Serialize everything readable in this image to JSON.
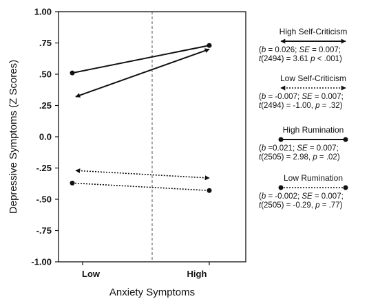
{
  "chart_data": {
    "type": "line",
    "xlabel": "Anxiety Symptoms",
    "ylabel": "Depressive Symptoms (Z Scores)",
    "categories": [
      "Low",
      "High"
    ],
    "ylim": [
      -1.0,
      1.0
    ],
    "y_ticks": [
      "1.00",
      ".75",
      ".50",
      ".25",
      "0.0",
      "-.25",
      "-.50",
      "-.75",
      "-1.00"
    ],
    "y_tick_values": [
      1.0,
      0.75,
      0.5,
      0.25,
      0.0,
      -0.25,
      -0.5,
      -0.75,
      -1.0
    ],
    "series": [
      {
        "name": "High Self-Criticism",
        "values": [
          0.32,
          0.7
        ],
        "style": "solid",
        "marker": "arrow"
      },
      {
        "name": "Low Self-Criticism",
        "values": [
          -0.27,
          -0.33
        ],
        "style": "dotted",
        "marker": "arrow"
      },
      {
        "name": "High Rumination",
        "values": [
          0.51,
          0.73
        ],
        "style": "solid",
        "marker": "dot"
      },
      {
        "name": "Low Rumination",
        "values": [
          -0.37,
          -0.43
        ],
        "style": "dotted",
        "marker": "dot"
      }
    ],
    "midline": "dashed-vertical",
    "grid": false
  },
  "legend": [
    {
      "name": "High Self-Criticism",
      "style": "solid",
      "marker": "arrow",
      "line1": [
        "(",
        {
          "t": "b",
          "i": true
        },
        " = 0.026; ",
        {
          "t": "SE",
          "i": true
        },
        " = 0.007;"
      ],
      "line2": [
        {
          "t": "t",
          "i": true
        },
        "(2494) = 3.61 ",
        {
          "t": "p",
          "i": true
        },
        " < .001)"
      ]
    },
    {
      "name": "Low Self-Criticism",
      "style": "dotted",
      "marker": "arrow",
      "line1": [
        "(",
        {
          "t": "b",
          "i": true
        },
        " = -0.007; ",
        {
          "t": "SE",
          "i": true
        },
        " = 0.007;"
      ],
      "line2": [
        {
          "t": "t",
          "i": true
        },
        "(2494) = -1.00, ",
        {
          "t": "p",
          "i": true
        },
        " = .32)"
      ]
    },
    {
      "name": "High Rumination",
      "style": "solid",
      "marker": "dot",
      "line1": [
        "(",
        {
          "t": "b",
          "i": true
        },
        " =0.021; ",
        {
          "t": "SE",
          "i": true
        },
        " = 0.007;"
      ],
      "line2": [
        {
          "t": "t",
          "i": true
        },
        "(2505) = 2.98, ",
        {
          "t": "p",
          "i": true
        },
        " = .02)"
      ]
    },
    {
      "name": "Low Rumination",
      "style": "dotted",
      "marker": "dot",
      "line1": [
        "(",
        {
          "t": "b",
          "i": true
        },
        " = -0.002; ",
        {
          "t": "SE",
          "i": true
        },
        " = 0.007;"
      ],
      "line2": [
        {
          "t": "t",
          "i": true
        },
        "(2505) = -0.29, ",
        {
          "t": "p",
          "i": true
        },
        " = .77)"
      ]
    }
  ],
  "colors": {
    "ink": "#111111",
    "background": "#ffffff"
  }
}
